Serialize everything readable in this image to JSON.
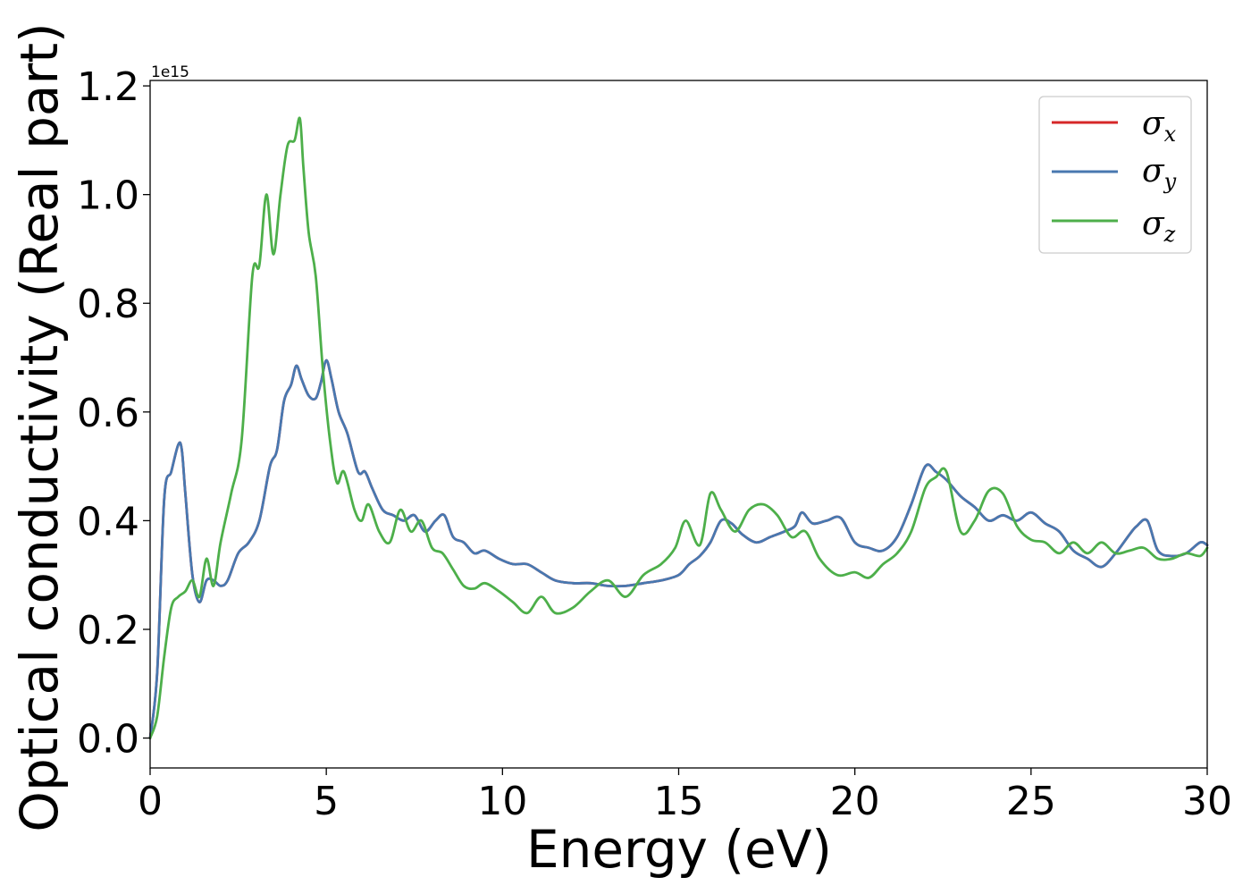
{
  "chart_data": {
    "type": "line",
    "xlabel": "Energy (eV)",
    "ylabel": "Optical conductivity (Real part)",
    "y_offset_label": "1e15",
    "xlim": [
      0,
      30
    ],
    "ylim": [
      -0.055,
      1.21
    ],
    "xticks": [
      0,
      5,
      10,
      15,
      20,
      25,
      30
    ],
    "xtick_labels": [
      "0",
      "5",
      "10",
      "15",
      "20",
      "25",
      "30"
    ],
    "yticks": [
      0.0,
      0.2,
      0.4,
      0.6,
      0.8,
      1.0,
      1.2
    ],
    "ytick_labels": [
      "0.0",
      "0.2",
      "0.4",
      "0.6",
      "0.8",
      "1.0",
      "1.2"
    ],
    "grid": false,
    "legend_position": "top-right",
    "series": [
      {
        "name": "σ_x",
        "legend_base": "σ",
        "legend_sub": "x",
        "color": "#d62728",
        "x": [
          0,
          0.2,
          0.4,
          0.6,
          0.8,
          0.9,
          1.0,
          1.2,
          1.4,
          1.6,
          1.8,
          2.0,
          2.2,
          2.5,
          2.8,
          3.1,
          3.4,
          3.6,
          3.8,
          4.0,
          4.15,
          4.3,
          4.5,
          4.7,
          4.85,
          5.0,
          5.15,
          5.35,
          5.6,
          5.9,
          6.1,
          6.3,
          6.6,
          6.9,
          7.2,
          7.5,
          7.8,
          8.1,
          8.35,
          8.6,
          8.9,
          9.2,
          9.5,
          9.9,
          10.3,
          10.7,
          11.1,
          11.5,
          12.0,
          12.5,
          13.0,
          13.5,
          14.0,
          14.5,
          15.0,
          15.3,
          15.6,
          15.9,
          16.2,
          16.5,
          16.8,
          17.2,
          17.6,
          18.0,
          18.3,
          18.5,
          18.8,
          19.2,
          19.6,
          20.0,
          20.4,
          20.8,
          21.2,
          21.6,
          22.0,
          22.3,
          22.6,
          23.0,
          23.4,
          23.8,
          24.2,
          24.6,
          25.0,
          25.4,
          25.8,
          26.2,
          26.6,
          27.0,
          27.4,
          27.8,
          28.0,
          28.3,
          28.6,
          29.0,
          29.4,
          29.8,
          30.0
        ],
        "values": [
          0.0,
          0.12,
          0.44,
          0.49,
          0.54,
          0.53,
          0.45,
          0.3,
          0.25,
          0.29,
          0.29,
          0.28,
          0.29,
          0.34,
          0.36,
          0.4,
          0.5,
          0.53,
          0.62,
          0.65,
          0.685,
          0.66,
          0.63,
          0.625,
          0.655,
          0.695,
          0.66,
          0.6,
          0.56,
          0.49,
          0.49,
          0.46,
          0.42,
          0.41,
          0.4,
          0.41,
          0.38,
          0.4,
          0.41,
          0.37,
          0.36,
          0.34,
          0.345,
          0.33,
          0.32,
          0.32,
          0.305,
          0.29,
          0.285,
          0.285,
          0.28,
          0.28,
          0.285,
          0.29,
          0.3,
          0.32,
          0.335,
          0.36,
          0.4,
          0.395,
          0.375,
          0.36,
          0.37,
          0.38,
          0.39,
          0.415,
          0.395,
          0.4,
          0.405,
          0.36,
          0.35,
          0.345,
          0.37,
          0.43,
          0.5,
          0.49,
          0.475,
          0.445,
          0.425,
          0.4,
          0.41,
          0.4,
          0.415,
          0.395,
          0.38,
          0.345,
          0.33,
          0.315,
          0.34,
          0.375,
          0.39,
          0.4,
          0.345,
          0.335,
          0.34,
          0.36,
          0.355
        ]
      },
      {
        "name": "σ_y",
        "legend_base": "σ",
        "legend_sub": "y",
        "color": "#4878b0",
        "x": [
          0,
          0.2,
          0.4,
          0.6,
          0.8,
          0.9,
          1.0,
          1.2,
          1.4,
          1.6,
          1.8,
          2.0,
          2.2,
          2.5,
          2.8,
          3.1,
          3.4,
          3.6,
          3.8,
          4.0,
          4.15,
          4.3,
          4.5,
          4.7,
          4.85,
          5.0,
          5.15,
          5.35,
          5.6,
          5.9,
          6.1,
          6.3,
          6.6,
          6.9,
          7.2,
          7.5,
          7.8,
          8.1,
          8.35,
          8.6,
          8.9,
          9.2,
          9.5,
          9.9,
          10.3,
          10.7,
          11.1,
          11.5,
          12.0,
          12.5,
          13.0,
          13.5,
          14.0,
          14.5,
          15.0,
          15.3,
          15.6,
          15.9,
          16.2,
          16.5,
          16.8,
          17.2,
          17.6,
          18.0,
          18.3,
          18.5,
          18.8,
          19.2,
          19.6,
          20.0,
          20.4,
          20.8,
          21.2,
          21.6,
          22.0,
          22.3,
          22.6,
          23.0,
          23.4,
          23.8,
          24.2,
          24.6,
          25.0,
          25.4,
          25.8,
          26.2,
          26.6,
          27.0,
          27.4,
          27.8,
          28.0,
          28.3,
          28.6,
          29.0,
          29.4,
          29.8,
          30.0
        ],
        "values": [
          0.0,
          0.12,
          0.44,
          0.49,
          0.54,
          0.53,
          0.45,
          0.3,
          0.25,
          0.29,
          0.29,
          0.28,
          0.29,
          0.34,
          0.36,
          0.4,
          0.5,
          0.53,
          0.62,
          0.65,
          0.685,
          0.66,
          0.63,
          0.625,
          0.655,
          0.695,
          0.66,
          0.6,
          0.56,
          0.49,
          0.49,
          0.46,
          0.42,
          0.41,
          0.4,
          0.41,
          0.38,
          0.4,
          0.41,
          0.37,
          0.36,
          0.34,
          0.345,
          0.33,
          0.32,
          0.32,
          0.305,
          0.29,
          0.285,
          0.285,
          0.28,
          0.28,
          0.285,
          0.29,
          0.3,
          0.32,
          0.335,
          0.36,
          0.4,
          0.395,
          0.375,
          0.36,
          0.37,
          0.38,
          0.39,
          0.415,
          0.395,
          0.4,
          0.405,
          0.36,
          0.35,
          0.345,
          0.37,
          0.43,
          0.5,
          0.49,
          0.475,
          0.445,
          0.425,
          0.4,
          0.41,
          0.4,
          0.415,
          0.395,
          0.38,
          0.345,
          0.33,
          0.315,
          0.34,
          0.375,
          0.39,
          0.4,
          0.345,
          0.335,
          0.34,
          0.36,
          0.355
        ]
      },
      {
        "name": "σ_z",
        "legend_base": "σ",
        "legend_sub": "z",
        "color": "#4daf4a",
        "x": [
          0,
          0.2,
          0.4,
          0.6,
          0.8,
          1.0,
          1.2,
          1.4,
          1.6,
          1.8,
          2.0,
          2.3,
          2.6,
          2.9,
          3.1,
          3.3,
          3.5,
          3.7,
          3.9,
          4.1,
          4.25,
          4.35,
          4.5,
          4.7,
          4.9,
          5.1,
          5.3,
          5.5,
          5.8,
          6.0,
          6.2,
          6.5,
          6.8,
          7.1,
          7.4,
          7.7,
          8.0,
          8.3,
          8.6,
          8.9,
          9.2,
          9.5,
          9.9,
          10.3,
          10.7,
          11.1,
          11.5,
          12.0,
          12.5,
          13.0,
          13.5,
          14.0,
          14.5,
          14.9,
          15.2,
          15.6,
          15.9,
          16.2,
          16.6,
          17.0,
          17.4,
          17.8,
          18.2,
          18.6,
          19.0,
          19.5,
          20.0,
          20.4,
          20.8,
          21.2,
          21.6,
          22.0,
          22.3,
          22.6,
          23.0,
          23.4,
          23.8,
          24.2,
          24.6,
          25.0,
          25.4,
          25.8,
          26.2,
          26.6,
          27.0,
          27.4,
          27.8,
          28.2,
          28.6,
          29.0,
          29.4,
          29.8,
          30.0
        ],
        "values": [
          0.0,
          0.04,
          0.15,
          0.24,
          0.26,
          0.27,
          0.29,
          0.26,
          0.33,
          0.28,
          0.36,
          0.45,
          0.55,
          0.85,
          0.87,
          1.0,
          0.89,
          1.0,
          1.09,
          1.1,
          1.14,
          1.05,
          0.93,
          0.85,
          0.68,
          0.55,
          0.47,
          0.49,
          0.42,
          0.4,
          0.43,
          0.38,
          0.36,
          0.42,
          0.38,
          0.4,
          0.35,
          0.34,
          0.31,
          0.28,
          0.275,
          0.285,
          0.27,
          0.25,
          0.23,
          0.26,
          0.23,
          0.24,
          0.27,
          0.29,
          0.26,
          0.3,
          0.32,
          0.35,
          0.4,
          0.355,
          0.45,
          0.42,
          0.38,
          0.42,
          0.43,
          0.41,
          0.37,
          0.38,
          0.33,
          0.3,
          0.305,
          0.295,
          0.32,
          0.34,
          0.38,
          0.46,
          0.48,
          0.49,
          0.38,
          0.4,
          0.455,
          0.45,
          0.39,
          0.365,
          0.36,
          0.34,
          0.36,
          0.34,
          0.36,
          0.34,
          0.345,
          0.35,
          0.33,
          0.33,
          0.34,
          0.335,
          0.35
        ]
      }
    ]
  }
}
